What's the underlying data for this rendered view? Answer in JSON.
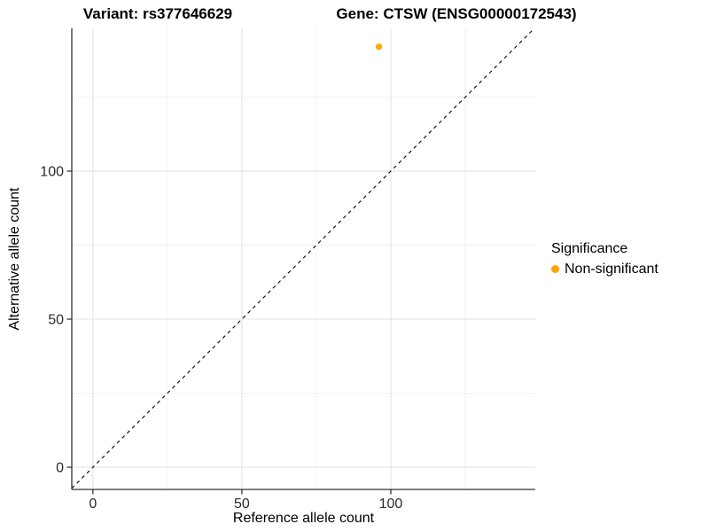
{
  "chart_data": {
    "type": "scatter",
    "titles": [
      "Variant: rs377646629",
      "Gene: CTSW (ENSG00000172543)"
    ],
    "xlabel": "Reference allele count",
    "ylabel": "Alternative allele count",
    "xlim": [
      -7.1,
      148.5
    ],
    "ylim": [
      -7.5,
      148.2
    ],
    "x_major_ticks": [
      0,
      50,
      100
    ],
    "y_major_ticks": [
      0,
      50,
      100
    ],
    "x_minor_ticks": [
      25,
      75,
      125
    ],
    "y_minor_ticks": [
      25,
      75,
      125
    ],
    "grid": true,
    "legend": {
      "title": "Significance",
      "position": "right"
    },
    "series": [
      {
        "name": "Non-significant",
        "color": "#FFA500",
        "points": [
          {
            "x": 96,
            "y": 142
          }
        ]
      }
    ],
    "reference_line": {
      "slope": 1,
      "intercept": 0,
      "style": "dashed",
      "color": "#000000"
    }
  },
  "colors": {
    "axis": "#333333",
    "grid_major": "#E4E4E4",
    "grid_minor": "#F0F0F0",
    "tick_label": "#2B2B2B",
    "point": "#FFA500"
  }
}
